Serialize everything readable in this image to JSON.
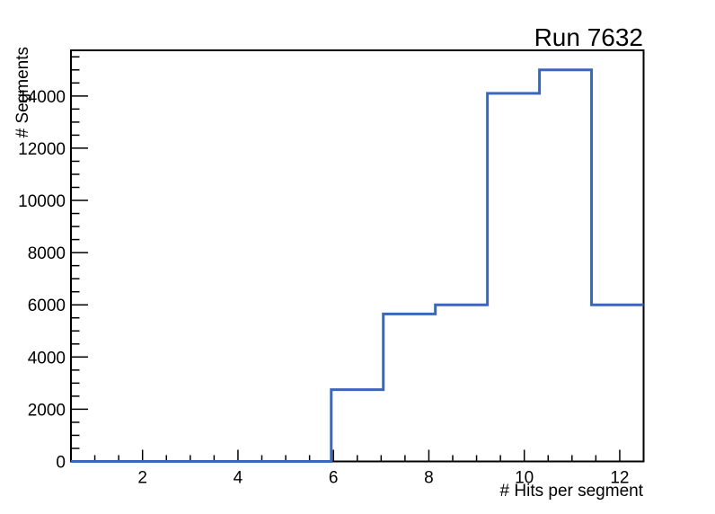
{
  "page": {
    "background": "#ffffff"
  },
  "chart_data": {
    "type": "histogram-step",
    "title": "Run 7632",
    "xlabel": "# Hits per segment",
    "ylabel": "# Segments",
    "xlim": [
      0.5,
      12.5
    ],
    "ylim": [
      0,
      15750
    ],
    "bin_edges": [
      0.5,
      1.5909,
      2.6818,
      3.7727,
      4.8636,
      5.9545,
      7.0455,
      8.1364,
      9.2273,
      10.3182,
      11.4091,
      12.5
    ],
    "values": [
      0,
      0,
      0,
      0,
      0,
      2750,
      5650,
      6000,
      14100,
      15000,
      6000
    ],
    "x_major_ticks": [
      2,
      4,
      6,
      8,
      10,
      12
    ],
    "x_minor_step": 0.5,
    "y_major_ticks": [
      0,
      2000,
      4000,
      6000,
      8000,
      10000,
      12000,
      14000
    ],
    "y_minor_step": 500,
    "grid": "off",
    "legend": "none",
    "line_color": "#3b67ba",
    "axis_color": "#000000"
  }
}
